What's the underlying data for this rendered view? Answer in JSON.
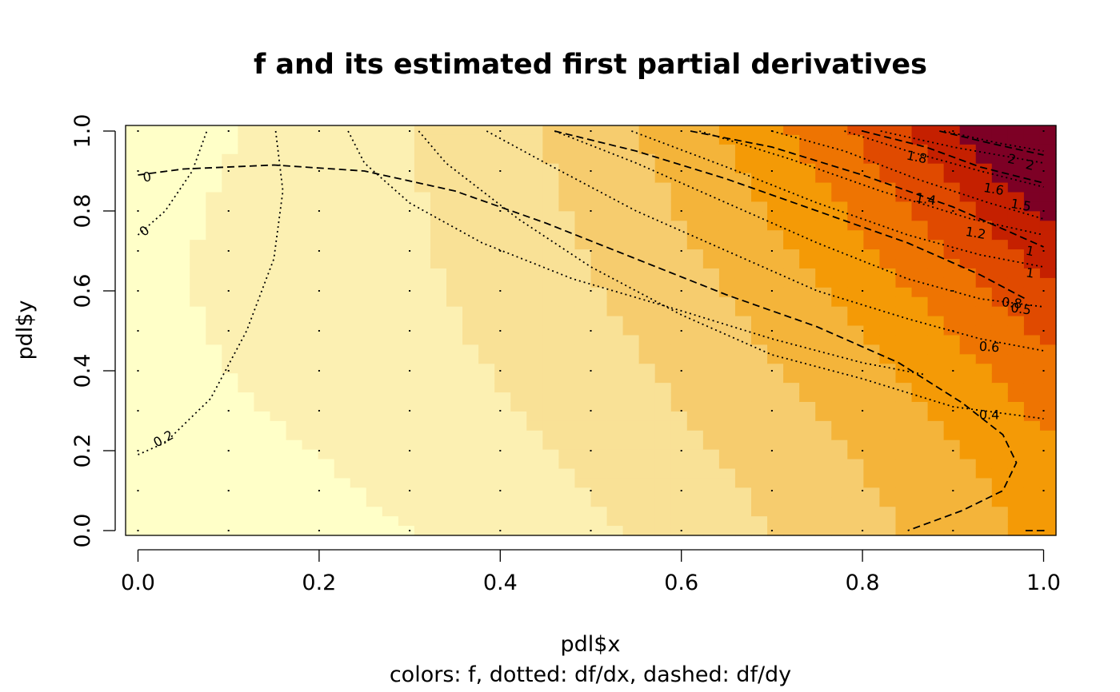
{
  "chart_data": {
    "type": "heatmap",
    "title": "f and its estimated first partial derivatives",
    "xlabel": "pdl$x",
    "ylabel": "pdl$y",
    "subtitle": "colors: f, dotted: df/dx, dashed: df/dy",
    "xlim": [
      0,
      1
    ],
    "ylim": [
      0,
      1
    ],
    "x_ticks": [
      "0.0",
      "0.2",
      "0.4",
      "0.6",
      "0.8",
      "1.0"
    ],
    "y_ticks": [
      "0.0",
      "0.2",
      "0.4",
      "0.6",
      "0.8",
      "1.0"
    ],
    "color_scale": [
      "#FFFFC8",
      "#FCF0B2",
      "#F9E196",
      "#F6CC6E",
      "#F4B43A",
      "#F49A06",
      "#EE7402",
      "#E04A00",
      "#C52000",
      "#7D0025"
    ],
    "dotted_contour_labels": [
      "0",
      "0",
      "0.2",
      "0.4",
      "0.6",
      "0.8",
      "1",
      "1.2",
      "1.4",
      "1.6",
      "1.8",
      "2"
    ],
    "dashed_contour_labels": [
      "0.5",
      "1",
      "1.5",
      "2"
    ]
  }
}
